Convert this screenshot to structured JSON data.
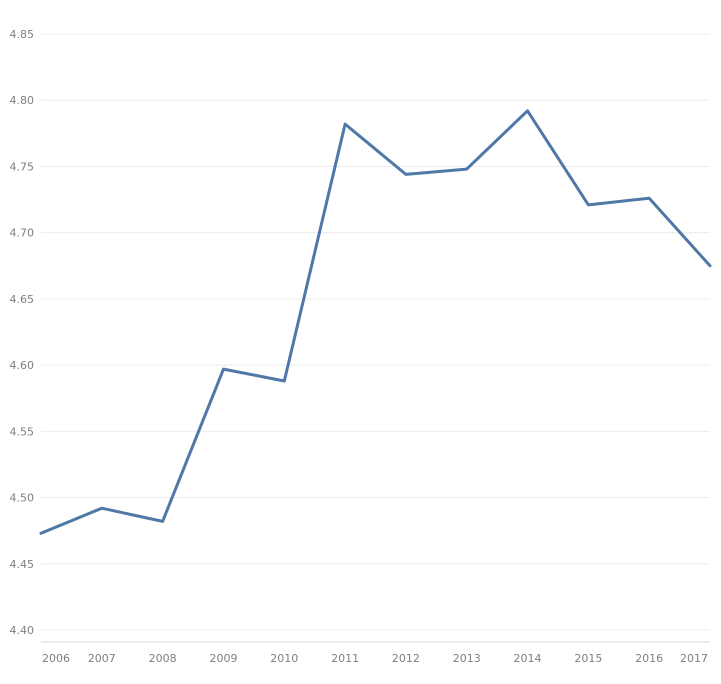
{
  "chart_data": {
    "type": "line",
    "title": "",
    "xlabel": "",
    "ylabel": "",
    "categories": [
      "2006",
      "2007",
      "2008",
      "2009",
      "2010",
      "2011",
      "2012",
      "2013",
      "2014",
      "2015",
      "2016",
      "2017"
    ],
    "y_ticks": [
      "4.40",
      "4.45",
      "4.50",
      "4.55",
      "4.60",
      "4.65",
      "4.70",
      "4.75",
      "4.80",
      "4.85"
    ],
    "ylim": [
      4.4,
      4.85
    ],
    "grid": true,
    "series": [
      {
        "values": [
          4.473,
          4.492,
          4.482,
          4.597,
          4.588,
          4.782,
          4.744,
          4.748,
          4.792,
          4.721,
          4.726,
          4.675
        ],
        "color": "#4e79a7"
      }
    ]
  }
}
